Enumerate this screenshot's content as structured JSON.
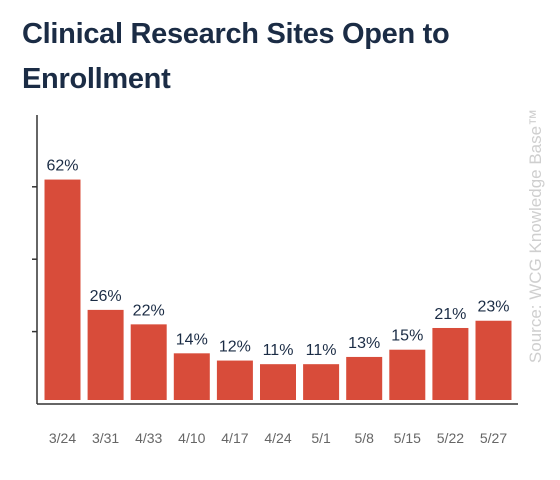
{
  "title": "Clinical Research Sites Open to Enrollment",
  "source": "Source: WCG Knowledge Base™",
  "colors": {
    "bar": "#d84c3a",
    "text": "#1b2c45",
    "axis": "#333333",
    "tick_label": "#666666"
  },
  "chart_data": {
    "type": "bar",
    "title": "Clinical Research Sites Open to Enrollment",
    "xlabel": "",
    "ylabel": "",
    "categories": [
      "3/24",
      "3/31",
      "4/33",
      "4/10",
      "4/17",
      "4/24",
      "5/1",
      "5/8",
      "5/15",
      "5/22",
      "5/27"
    ],
    "values": [
      62,
      26,
      22,
      14,
      12,
      11,
      11,
      13,
      15,
      21,
      23
    ],
    "data_labels": [
      "62%",
      "26%",
      "22%",
      "14%",
      "12%",
      "11%",
      "11%",
      "13%",
      "15%",
      "21%",
      "23%"
    ],
    "ylim": [
      0,
      80
    ],
    "y_ticks": [
      20,
      40,
      60
    ],
    "grid": false,
    "legend": "none"
  }
}
